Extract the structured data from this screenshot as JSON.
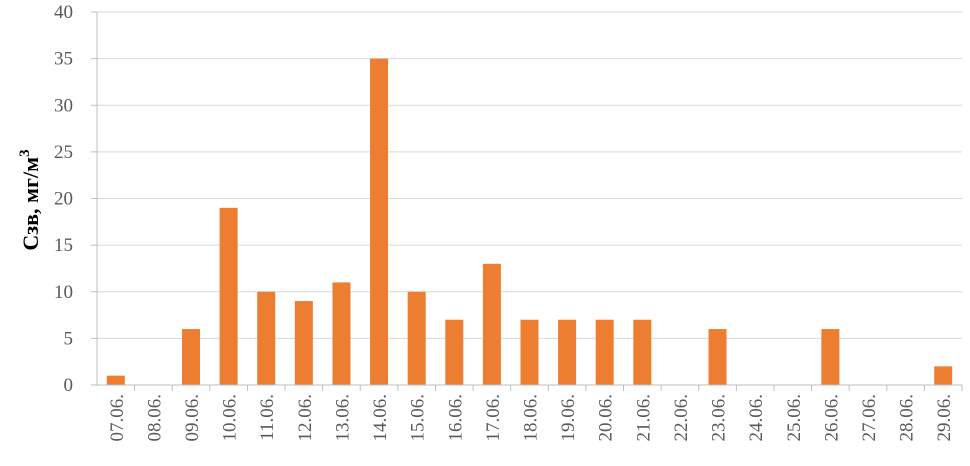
{
  "chart_data": {
    "type": "bar",
    "ylabel": {
      "text": "Сзв,  мг/м",
      "superscript": "3"
    },
    "xlabel": "",
    "ylim": [
      0,
      40
    ],
    "yticks": [
      0,
      5,
      10,
      15,
      20,
      25,
      30,
      35,
      40
    ],
    "grid": true,
    "categories": [
      "07.06.",
      "08.06.",
      "09.06.",
      "10.06.",
      "11.06.",
      "12.06.",
      "13.06.",
      "14.06.",
      "15.06.",
      "16.06.",
      "17.06.",
      "18.06.",
      "19.06.",
      "20.06.",
      "21.06.",
      "22.06.",
      "23.06.",
      "24.06.",
      "25.06.",
      "26.06.",
      "27.06.",
      "28.06.",
      "29.06."
    ],
    "values": [
      1,
      0,
      6,
      19,
      10,
      9,
      11,
      35,
      10,
      7,
      13,
      7,
      7,
      7,
      7,
      0,
      6,
      0,
      0,
      6,
      0,
      0,
      2
    ],
    "colors": {
      "bar": "#ED7D31",
      "grid": "#D9D9D9",
      "axis": "#BFBFBF",
      "text": "#595959"
    }
  }
}
